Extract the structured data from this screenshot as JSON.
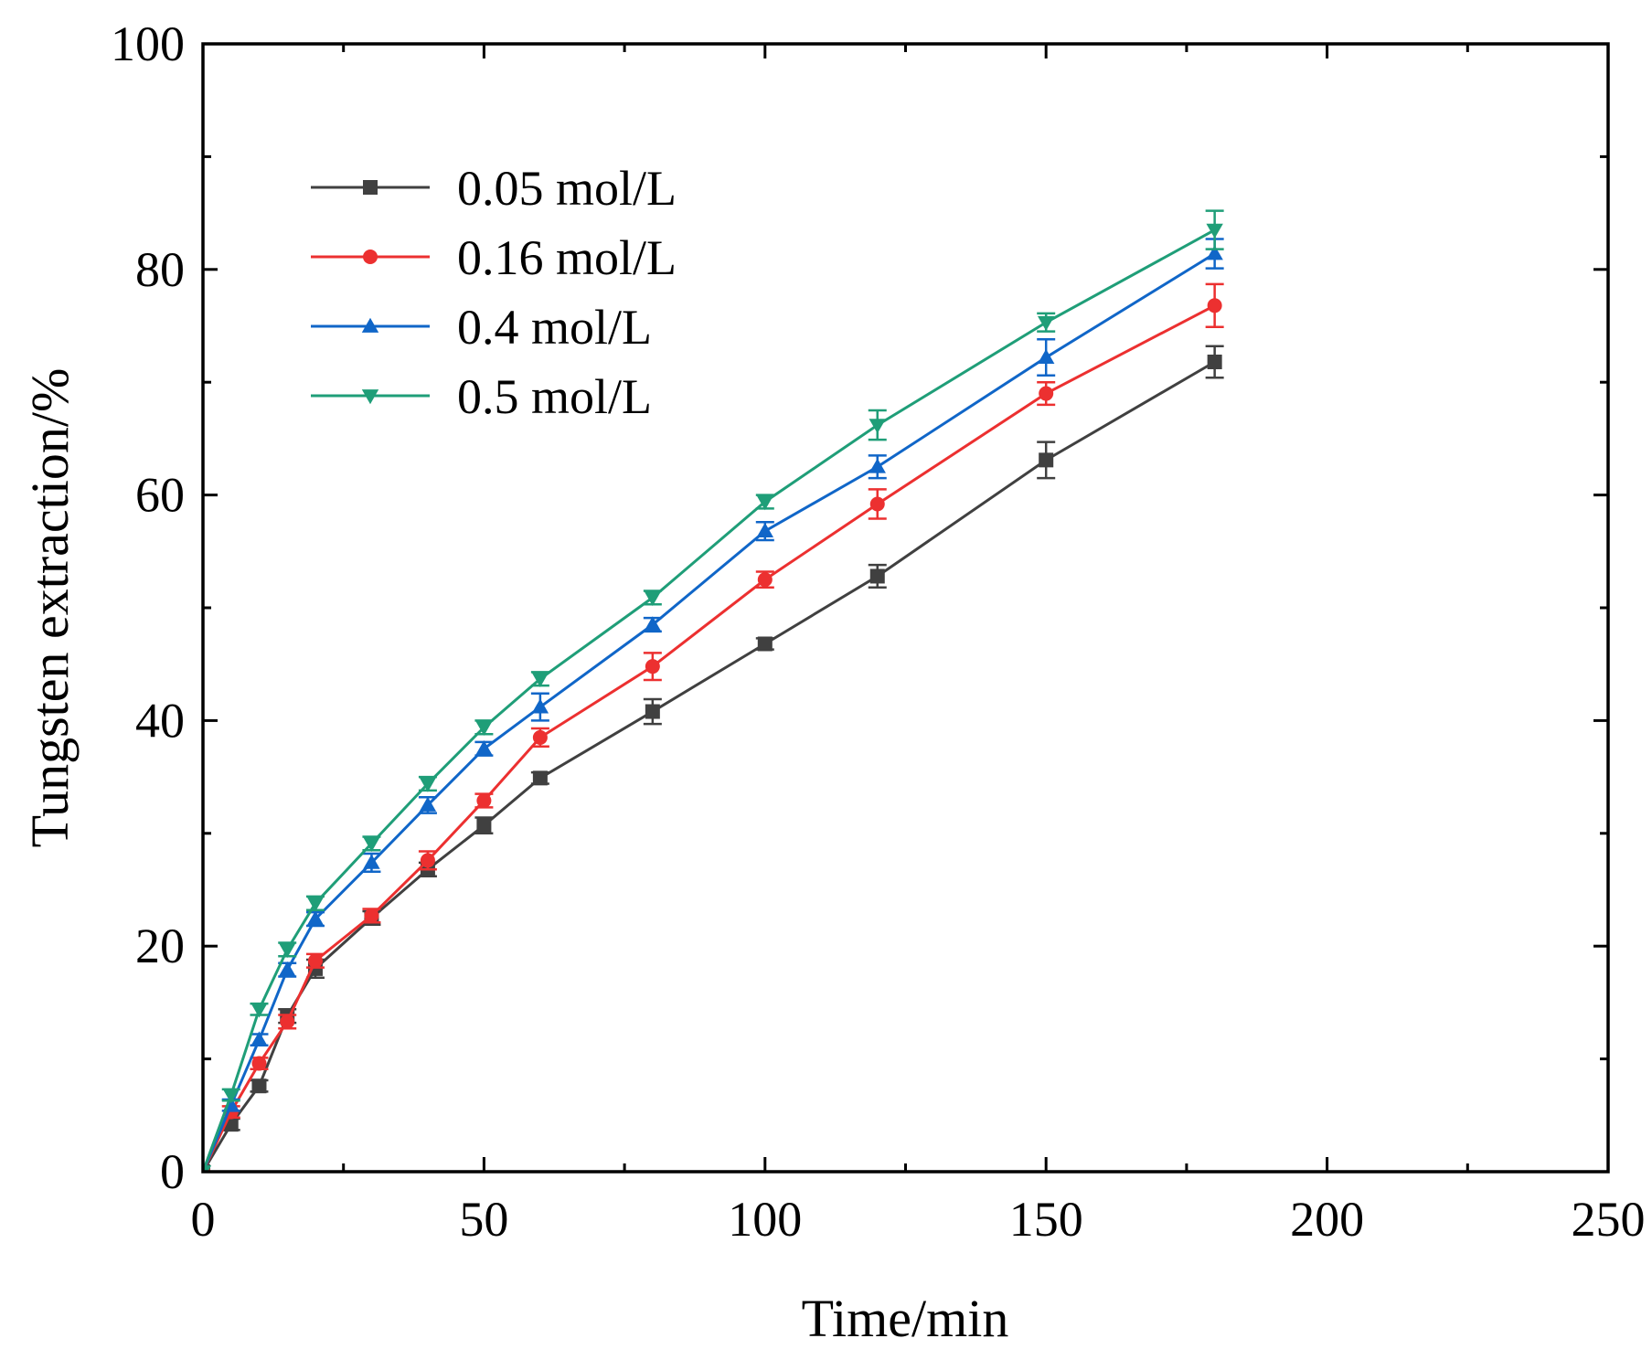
{
  "chart_data": {
    "type": "line",
    "title": "",
    "xlabel": "Time/min",
    "ylabel": "Tungsten extraction/%",
    "xlim": [
      0,
      250
    ],
    "ylim": [
      0,
      100
    ],
    "xticks": [
      0,
      50,
      100,
      150,
      200,
      250
    ],
    "yticks": [
      0,
      20,
      40,
      60,
      80,
      100
    ],
    "grid": false,
    "legend_position": "top-left",
    "x": [
      0,
      5,
      10,
      15,
      20,
      30,
      40,
      50,
      60,
      80,
      100,
      120,
      150,
      180
    ],
    "series": [
      {
        "name": "0.05 mol/L",
        "color": "#404040",
        "marker": "square",
        "values": [
          0,
          4.2,
          7.6,
          13.8,
          18.0,
          22.5,
          26.8,
          30.7,
          34.9,
          40.8,
          46.8,
          52.8,
          63.1,
          71.8
        ],
        "errors": [
          0,
          0.5,
          0.5,
          0.6,
          0.8,
          0.6,
          0.6,
          0.7,
          0.5,
          1.1,
          0.5,
          1.0,
          1.6,
          1.4
        ]
      },
      {
        "name": "0.16 mol/L",
        "color": "#ec3030",
        "marker": "circle",
        "values": [
          0,
          5.3,
          9.6,
          13.3,
          18.7,
          22.7,
          27.6,
          32.9,
          38.5,
          44.8,
          52.5,
          59.2,
          69.0,
          76.8
        ],
        "errors": [
          0,
          0.5,
          0.5,
          0.6,
          0.6,
          0.6,
          0.8,
          0.6,
          0.8,
          1.2,
          0.7,
          1.3,
          1.0,
          1.9
        ]
      },
      {
        "name": "0.4 mol/L",
        "color": "#1066c8",
        "marker": "triangle-up",
        "values": [
          0,
          5.9,
          11.7,
          17.9,
          22.4,
          27.4,
          32.5,
          37.5,
          41.2,
          48.5,
          56.8,
          62.5,
          72.2,
          81.4
        ],
        "errors": [
          0,
          0.5,
          0.5,
          0.6,
          0.6,
          0.8,
          0.7,
          0.6,
          1.2,
          0.6,
          0.8,
          1.0,
          1.6,
          1.3
        ]
      },
      {
        "name": "0.5 mol/L",
        "color": "#1f9e78",
        "marker": "triangle-down",
        "values": [
          0,
          6.8,
          14.4,
          19.7,
          23.8,
          29.1,
          34.4,
          39.4,
          43.7,
          50.9,
          59.4,
          66.2,
          75.3,
          83.5
        ],
        "errors": [
          0,
          0.5,
          0.5,
          0.6,
          0.6,
          0.6,
          0.6,
          0.6,
          0.6,
          0.6,
          0.6,
          1.3,
          0.8,
          1.7
        ]
      }
    ]
  }
}
